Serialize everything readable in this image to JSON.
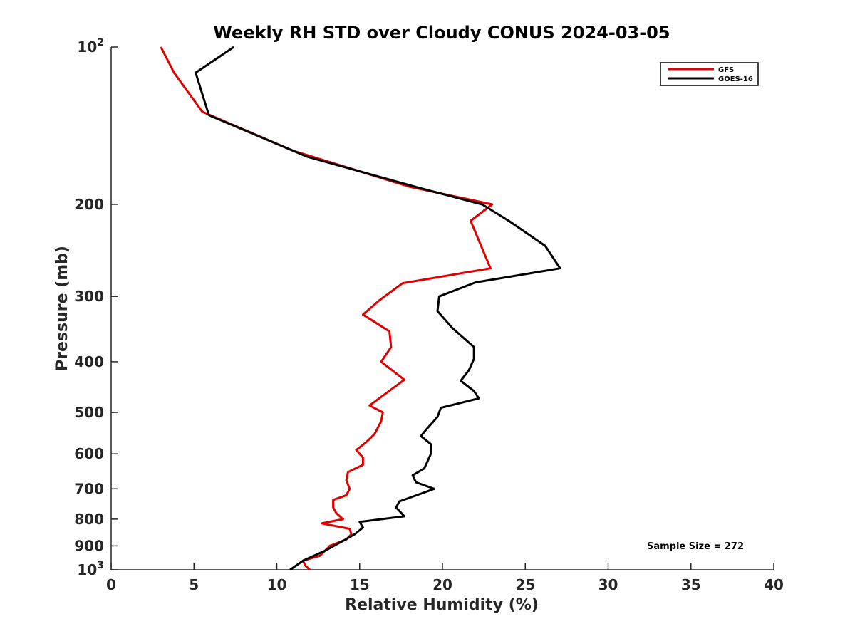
{
  "chart_data": {
    "type": "line",
    "title": "Weekly RH STD over Cloudy CONUS 2024-03-05",
    "xlabel": "Relative Humidity (%)",
    "ylabel": "Pressure (mb)",
    "xlim": [
      0,
      40
    ],
    "ylim": [
      100,
      1000
    ],
    "y_scale": "log",
    "y_reversed": true,
    "grid": false,
    "legend_position": "top-right",
    "x_ticks": [
      0,
      5,
      10,
      15,
      20,
      25,
      30,
      35,
      40
    ],
    "x_tick_labels": [
      "0",
      "5",
      "10",
      "15",
      "20",
      "25",
      "30",
      "35",
      "40"
    ],
    "y_ticks": [
      {
        "value": 100,
        "base": "10",
        "exp": "2"
      },
      {
        "value": 200,
        "label": "200"
      },
      {
        "value": 300,
        "label": "300"
      },
      {
        "value": 400,
        "label": "400"
      },
      {
        "value": 500,
        "label": "500"
      },
      {
        "value": 600,
        "label": "600"
      },
      {
        "value": 700,
        "label": "700"
      },
      {
        "value": 800,
        "label": "800"
      },
      {
        "value": 900,
        "label": "900"
      },
      {
        "value": 1000,
        "base": "10",
        "exp": "3"
      }
    ],
    "series": [
      {
        "name": "GFS",
        "color": "#e00000",
        "x": [
          3.0,
          3.8,
          5.5,
          11.0,
          18.0,
          23.0,
          21.7,
          22.9,
          17.6,
          16.2,
          15.2,
          16.8,
          16.9,
          16.3,
          17.7,
          15.6,
          16.4,
          16.3,
          15.9,
          15.4,
          14.8,
          15.2,
          15.2,
          14.3,
          14.2,
          14.4,
          14.2,
          13.4,
          13.4,
          13.6,
          14.0,
          12.7,
          14.4,
          14.5,
          14.2,
          13.2,
          12.6,
          11.6,
          11.7,
          12.0
        ],
        "y": [
          100,
          112,
          133,
          158,
          185,
          200,
          215,
          265,
          283,
          305,
          325,
          350,
          375,
          400,
          433,
          485,
          500,
          520,
          550,
          570,
          590,
          610,
          630,
          650,
          675,
          700,
          720,
          735,
          760,
          780,
          800,
          815,
          835,
          855,
          875,
          900,
          940,
          960,
          980,
          1000
        ]
      },
      {
        "name": "GOES-16",
        "color": "#000000",
        "x": [
          7.4,
          5.1,
          5.9,
          11.8,
          18.6,
          22.4,
          24.0,
          26.2,
          27.1,
          22.0,
          19.8,
          19.7,
          20.6,
          21.9,
          21.9,
          21.6,
          21.1,
          21.9,
          22.2,
          19.9,
          19.7,
          19.0,
          18.7,
          19.3,
          19.3,
          19.1,
          18.9,
          18.2,
          18.4,
          19.5,
          18.7,
          17.4,
          17.2,
          17.7,
          15.0,
          15.2,
          14.7,
          14.0,
          12.9,
          11.6,
          10.8
        ],
        "y": [
          100,
          112,
          135,
          162,
          186,
          200,
          215,
          240,
          265,
          282,
          300,
          320,
          345,
          375,
          395,
          415,
          435,
          455,
          470,
          490,
          510,
          540,
          555,
          575,
          600,
          620,
          640,
          660,
          680,
          700,
          715,
          740,
          760,
          790,
          810,
          830,
          855,
          880,
          920,
          960,
          1000
        ]
      }
    ],
    "annotations": [
      {
        "text": "Sample Size = 272"
      }
    ]
  }
}
